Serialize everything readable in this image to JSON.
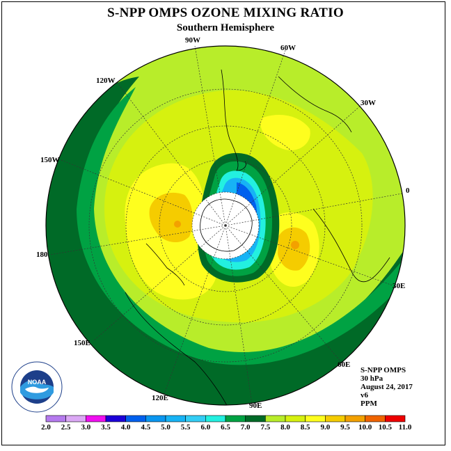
{
  "title": "S-NPP OMPS OZONE MIXING RATIO",
  "subtitle": "Southern Hemisphere",
  "longitude_labels": {
    "lon_90w": "90W",
    "lon_60w": "60W",
    "lon_120w": "120W",
    "lon_30w": "30W",
    "lon_150w": "150W",
    "lon_0": "0",
    "lon_180": "180",
    "lon_30e": "30E",
    "lon_150e": "150E",
    "lon_60e": "60E",
    "lon_120e": "120E",
    "lon_90e": "90E"
  },
  "info": {
    "instrument": "S-NPP OMPS",
    "level": "30 hPa",
    "date": "August 24, 2017",
    "version": "v6",
    "units": "PPM"
  },
  "logo": {
    "text": "NOAA"
  },
  "colorbar": {
    "labels": [
      "2.0",
      "2.5",
      "3.0",
      "3.5",
      "4.0",
      "4.5",
      "5.0",
      "5.5",
      "6.0",
      "6.5",
      "7.0",
      "7.5",
      "8.0",
      "8.5",
      "9.0",
      "9.5",
      "10.0",
      "10.5",
      "11.0"
    ],
    "colors": [
      "#b57aee",
      "#dba8f5",
      "#f00ff0",
      "#1c00d8",
      "#0060ee",
      "#0a96f0",
      "#17b3f5",
      "#33cdf5",
      "#23f0e0",
      "#00a243",
      "#006a27",
      "#b8ed2a",
      "#d6f10f",
      "#fefe1e",
      "#f5cc00",
      "#f3a100",
      "#f06400",
      "#ee0000",
      "#8a4a26"
    ]
  },
  "colors": {
    "dark_green": "#006a27",
    "green": "#00a243",
    "light_green": "#b8ed2a",
    "yellow_green": "#d6f10f",
    "yellow": "#fefe1e",
    "orange": "#f5cc00",
    "blue": "#17b3f5",
    "deep_blue": "#0060ee"
  }
}
